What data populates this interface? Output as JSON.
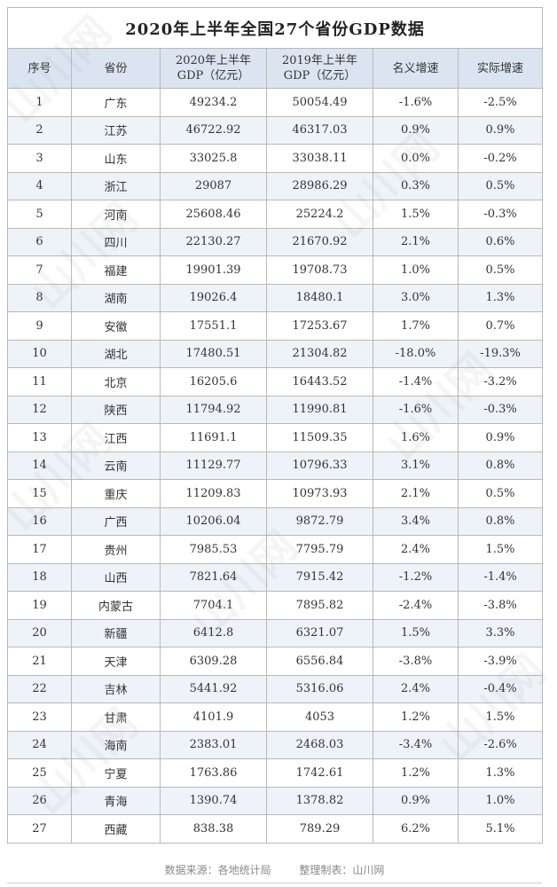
{
  "title": "2020年上半年全国27个省份GDP数据",
  "headers": {
    "seq": "序号",
    "province": "省份",
    "gdp2020_l1": "2020年上半年",
    "gdp2020_l2": "GDP（亿元）",
    "gdp2019_l1": "2019年上半年",
    "gdp2019_l2": "GDP（亿元）",
    "nominal": "名义增速",
    "real": "实际增速"
  },
  "rows": [
    [
      "1",
      "广东",
      "49234.2",
      "50054.49",
      "-1.6%",
      "-2.5%"
    ],
    [
      "2",
      "江苏",
      "46722.92",
      "46317.03",
      "0.9%",
      "0.9%"
    ],
    [
      "3",
      "山东",
      "33025.8",
      "33038.11",
      "0.0%",
      "-0.2%"
    ],
    [
      "4",
      "浙江",
      "29087",
      "28986.29",
      "0.3%",
      "0.5%"
    ],
    [
      "5",
      "河南",
      "25608.46",
      "25224.2",
      "1.5%",
      "-0.3%"
    ],
    [
      "6",
      "四川",
      "22130.27",
      "21670.92",
      "2.1%",
      "0.6%"
    ],
    [
      "7",
      "福建",
      "19901.39",
      "19708.73",
      "1.0%",
      "0.5%"
    ],
    [
      "8",
      "湖南",
      "19026.4",
      "18480.1",
      "3.0%",
      "1.3%"
    ],
    [
      "9",
      "安徽",
      "17551.1",
      "17253.67",
      "1.7%",
      "0.7%"
    ],
    [
      "10",
      "湖北",
      "17480.51",
      "21304.82",
      "-18.0%",
      "-19.3%"
    ],
    [
      "11",
      "北京",
      "16205.6",
      "16443.52",
      "-1.4%",
      "-3.2%"
    ],
    [
      "12",
      "陕西",
      "11794.92",
      "11990.81",
      "-1.6%",
      "-0.3%"
    ],
    [
      "13",
      "江西",
      "11691.1",
      "11509.35",
      "1.6%",
      "0.9%"
    ],
    [
      "14",
      "云南",
      "11129.77",
      "10796.33",
      "3.1%",
      "0.8%"
    ],
    [
      "15",
      "重庆",
      "11209.83",
      "10973.93",
      "2.1%",
      "0.5%"
    ],
    [
      "16",
      "广西",
      "10206.04",
      "9872.79",
      "3.4%",
      "0.8%"
    ],
    [
      "17",
      "贵州",
      "7985.53",
      "7795.79",
      "2.4%",
      "1.5%"
    ],
    [
      "18",
      "山西",
      "7821.64",
      "7915.42",
      "-1.2%",
      "-1.4%"
    ],
    [
      "19",
      "内蒙古",
      "7704.1",
      "7895.82",
      "-2.4%",
      "-3.8%"
    ],
    [
      "20",
      "新疆",
      "6412.8",
      "6321.07",
      "1.5%",
      "3.3%"
    ],
    [
      "21",
      "天津",
      "6309.28",
      "6556.84",
      "-3.8%",
      "-3.9%"
    ],
    [
      "22",
      "吉林",
      "5441.92",
      "5316.06",
      "2.4%",
      "-0.4%"
    ],
    [
      "23",
      "甘肃",
      "4101.9",
      "4053",
      "1.2%",
      "1.5%"
    ],
    [
      "24",
      "海南",
      "2383.01",
      "2468.03",
      "-3.4%",
      "-2.6%"
    ],
    [
      "25",
      "宁夏",
      "1763.86",
      "1742.61",
      "1.2%",
      "1.3%"
    ],
    [
      "26",
      "青海",
      "1390.74",
      "1378.82",
      "0.9%",
      "1.0%"
    ],
    [
      "27",
      "西藏",
      "838.38",
      "789.29",
      "6.2%",
      "5.1%"
    ]
  ],
  "footer": {
    "source": "数据来源：各地统计局",
    "maker": "整理制表：山川网"
  },
  "watermark": "山川网"
}
